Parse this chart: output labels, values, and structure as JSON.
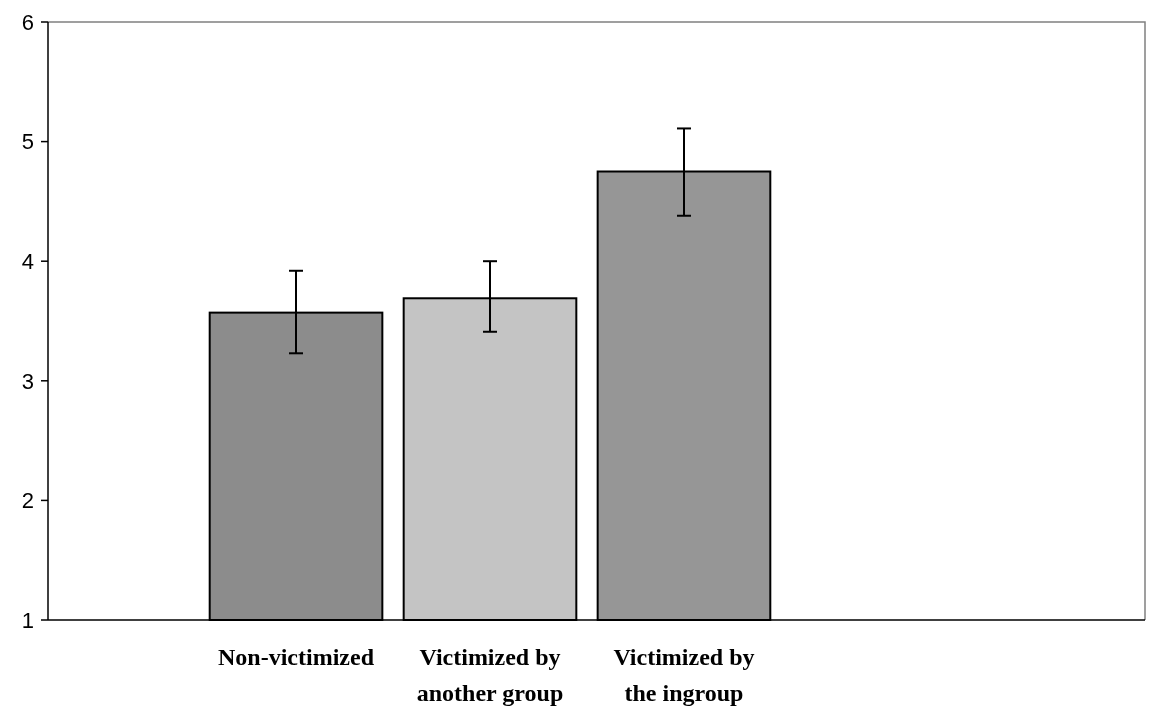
{
  "chart_data": {
    "type": "bar",
    "categories": [
      "Non-victimized",
      "Victimized by another group",
      "Victimized by the ingroup"
    ],
    "values": [
      3.57,
      3.69,
      4.75
    ],
    "errors": [
      [
        3.23,
        3.92
      ],
      [
        3.41,
        4.0
      ],
      [
        4.38,
        5.11
      ]
    ],
    "colors": [
      "#8c8c8c",
      "#c4c4c4",
      "#969696"
    ],
    "ylim": [
      1,
      6
    ],
    "yticks": [
      1,
      2,
      3,
      4,
      5,
      6
    ],
    "grid": false
  }
}
